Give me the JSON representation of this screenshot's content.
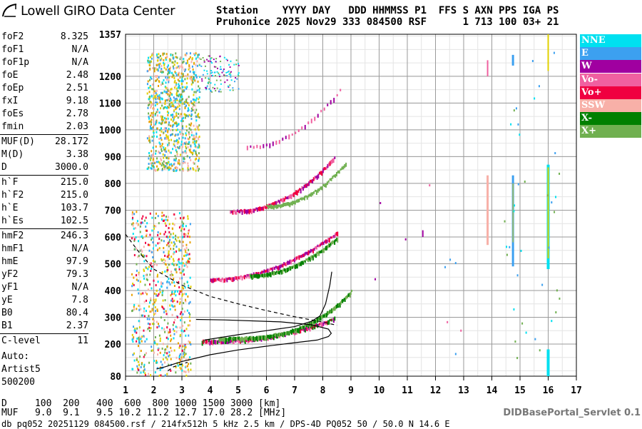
{
  "app": {
    "logo_text": "Lowell GIRO Data Center"
  },
  "header": {
    "line1": "Station    YYYY DAY   DDD HHMMSS P1  FFS S AXN PPS IGA PS",
    "line2": "Pruhonice 2025 Nov29 333 084500 RSF      1 713 100 03+ 21"
  },
  "params_group1": [
    {
      "k": "foF2",
      "v": "8.325"
    },
    {
      "k": "foF1",
      "v": "N/A"
    },
    {
      "k": "foF1p",
      "v": "N/A"
    },
    {
      "k": "foE",
      "v": "2.48"
    },
    {
      "k": "foEp",
      "v": "2.51"
    },
    {
      "k": "fxI",
      "v": "9.18"
    },
    {
      "k": "foEs",
      "v": "2.78"
    },
    {
      "k": "fmin",
      "v": "2.03"
    }
  ],
  "params_group2": [
    {
      "k": "MUF(D)",
      "v": "28.172"
    },
    {
      "k": "M(D)",
      "v": "3.38"
    },
    {
      "k": "D",
      "v": "3000.0"
    }
  ],
  "params_group3": [
    {
      "k": "h`F",
      "v": "215.0"
    },
    {
      "k": "h`F2",
      "v": "215.0"
    },
    {
      "k": "h`E",
      "v": "103.7"
    },
    {
      "k": "h`Es",
      "v": "102.5"
    }
  ],
  "params_group4": [
    {
      "k": "hmF2",
      "v": "246.3"
    },
    {
      "k": "hmF1",
      "v": "N/A"
    },
    {
      "k": "hmE",
      "v": "97.9"
    },
    {
      "k": "yF2",
      "v": "79.3"
    },
    {
      "k": "yF1",
      "v": "N/A"
    },
    {
      "k": "yE",
      "v": "7.8"
    },
    {
      "k": "B0",
      "v": "80.4"
    },
    {
      "k": "B1",
      "v": "2.37"
    }
  ],
  "params_group5": [
    {
      "k": "C-level",
      "v": "11"
    }
  ],
  "auto": {
    "line1": "Auto:",
    "line2": "Artist5",
    "line3": "500200"
  },
  "legend": [
    {
      "label": "NNE",
      "color": "#00e0f0"
    },
    {
      "label": "E",
      "color": "#3ca0f0"
    },
    {
      "label": "W",
      "color": "#a000a0"
    },
    {
      "label": "Vo-",
      "color": "#f060a0"
    },
    {
      "label": "Vo+",
      "color": "#f00040"
    },
    {
      "label": "SSW",
      "color": "#f8b0a8"
    },
    {
      "label": "X-",
      "color": "#008000"
    },
    {
      "label": "X+",
      "color": "#70b050"
    }
  ],
  "footer": {
    "d_row": "D     100  200   400  600  800 1000 1500 3000 [km]",
    "muf_row": "MUF   9.0  9.1   9.5 10.2 11.2 12.7 17.0 28.2 [MHz]",
    "file_row": "db pq052 20251129 084500.rsf / 214fx512h 5 kHz 2.5 km / DPS-4D PQ052 50 / 50.0 N 14.6 E",
    "servlet": "DIDBasePortal_Servlet 0.1"
  },
  "chart_data": {
    "type": "scatter",
    "xlim": [
      1,
      17
    ],
    "ylim": [
      80,
      1357
    ],
    "x_ticks": [
      1,
      2,
      3,
      4,
      5,
      6,
      7,
      8,
      9,
      10,
      11,
      12,
      13,
      14,
      15,
      16,
      17
    ],
    "y_ticks": [
      80,
      200,
      300,
      400,
      500,
      600,
      700,
      800,
      900,
      1000,
      1100,
      1200,
      1357
    ],
    "grid": true,
    "x_minor_step": 0.5,
    "y_minor_step": 50,
    "profile_curve": [
      [
        2.1,
        107
      ],
      [
        2.4,
        115
      ],
      [
        3.0,
        135
      ],
      [
        4.0,
        160
      ],
      [
        5.0,
        178
      ],
      [
        6.0,
        192
      ],
      [
        7.0,
        205
      ],
      [
        7.8,
        215
      ],
      [
        8.2,
        228
      ],
      [
        8.3,
        240
      ],
      [
        8.2,
        256
      ],
      [
        7.6,
        272
      ],
      [
        6.5,
        283
      ],
      [
        4.5,
        290
      ],
      [
        3.5,
        292
      ]
    ],
    "virtual_height_curve": [
      [
        3.8,
        215
      ],
      [
        5.0,
        235
      ],
      [
        6.0,
        250
      ],
      [
        7.0,
        265
      ],
      [
        7.6,
        285
      ],
      [
        7.9,
        305
      ],
      [
        8.1,
        350
      ],
      [
        8.25,
        420
      ],
      [
        8.32,
        470
      ]
    ],
    "dashed_curve": [
      [
        1.0,
        610
      ],
      [
        1.5,
        540
      ],
      [
        2.0,
        480
      ],
      [
        3.0,
        420
      ],
      [
        4.0,
        378
      ],
      [
        5.0,
        350
      ],
      [
        6.0,
        325
      ],
      [
        7.0,
        302
      ],
      [
        8.0,
        282
      ],
      [
        8.5,
        270
      ]
    ],
    "dashed_curve_lower": [
      [
        2.5,
        100
      ],
      [
        2.7,
        115
      ],
      [
        3.2,
        132
      ]
    ]
  }
}
